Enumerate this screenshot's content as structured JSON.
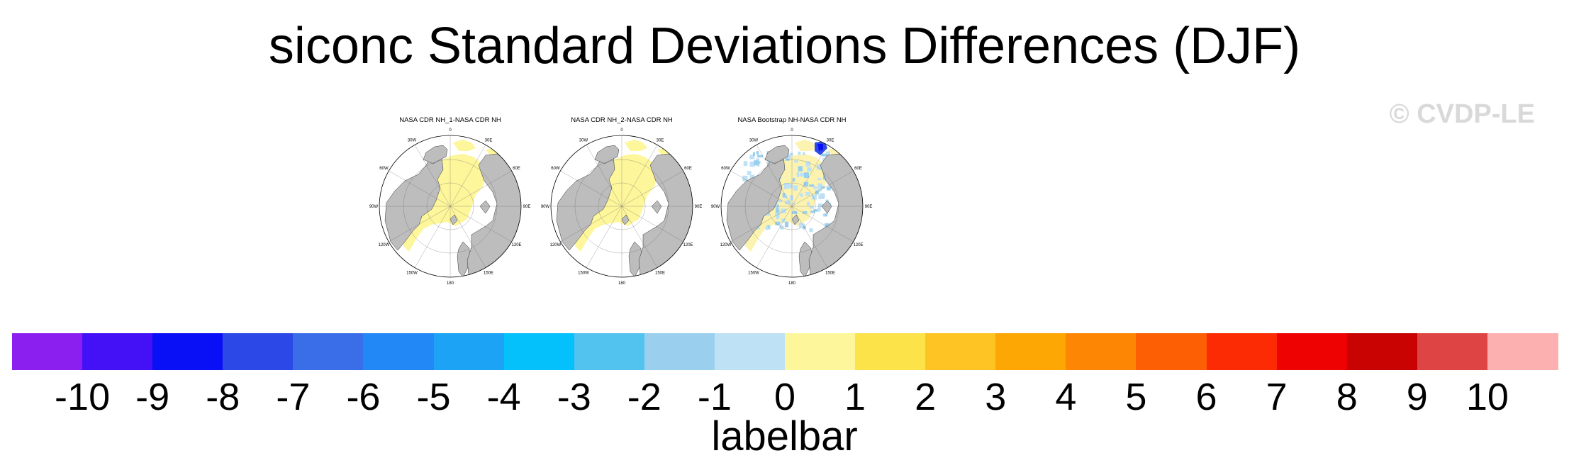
{
  "title": "siconc Standard Deviations Differences (DJF)",
  "watermark": "© CVDP-LE",
  "panels": [
    {
      "title": "NASA CDR NH_1-NASA CDR NH",
      "variant": "uniform"
    },
    {
      "title": "NASA CDR NH_2-NASA CDR NH",
      "variant": "uniform"
    },
    {
      "title": "NASA Bootstrap NH-NASA CDR NH",
      "variant": "patchy"
    }
  ],
  "lon_labels": [
    "180",
    "150E",
    "120E",
    "90E",
    "60E",
    "30E",
    "0",
    "30W",
    "60W",
    "90W",
    "120W",
    "150W"
  ],
  "colorbar": {
    "title": "labelbar",
    "ticks": [
      "-10",
      "-9",
      "-8",
      "-7",
      "-6",
      "-5",
      "-4",
      "-3",
      "-2",
      "-1",
      "0",
      "1",
      "2",
      "3",
      "4",
      "5",
      "6",
      "7",
      "8",
      "9",
      "10"
    ],
    "colors": [
      "#8a1ff0",
      "#4410f5",
      "#0a10f5",
      "#2c48e6",
      "#3a6ee8",
      "#2288f5",
      "#1ca3f5",
      "#04c0fb",
      "#52c3ee",
      "#9ad0ee",
      "#bfe1f5",
      "#fdf69b",
      "#fde34a",
      "#fec424",
      "#fda705",
      "#fd8704",
      "#fd6004",
      "#fd2b04",
      "#ee0202",
      "#c90202",
      "#de4444",
      "#fdb0b0"
    ]
  }
}
